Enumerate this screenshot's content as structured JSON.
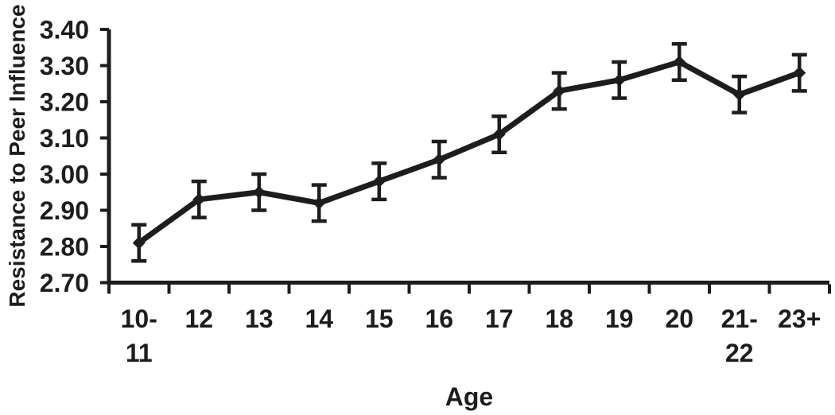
{
  "figure": {
    "background": "#ffffff",
    "ink_color": "#1d1d1b"
  },
  "chart_data": {
    "type": "line",
    "title": "",
    "xlabel": "Age",
    "ylabel": "Resistance to Peer Influence",
    "categories": [
      "10-11",
      "12",
      "13",
      "14",
      "15",
      "16",
      "17",
      "18",
      "19",
      "20",
      "21-22",
      "23+"
    ],
    "values": [
      2.81,
      2.93,
      2.95,
      2.92,
      2.98,
      3.04,
      3.11,
      3.23,
      3.26,
      3.31,
      3.22,
      3.28
    ],
    "error_bars": true,
    "errors": [
      0.05,
      0.05,
      0.05,
      0.05,
      0.05,
      0.05,
      0.05,
      0.05,
      0.05,
      0.05,
      0.05,
      0.05
    ],
    "marker": "diamond",
    "line_color": "#1d1d1b",
    "ylim": [
      2.7,
      3.4
    ],
    "ytick_step": 0.1,
    "ytick_labels": [
      "2.70",
      "2.80",
      "2.90",
      "3.00",
      "3.10",
      "3.20",
      "3.30",
      "3.40"
    ],
    "grid": false,
    "legend": "none"
  }
}
